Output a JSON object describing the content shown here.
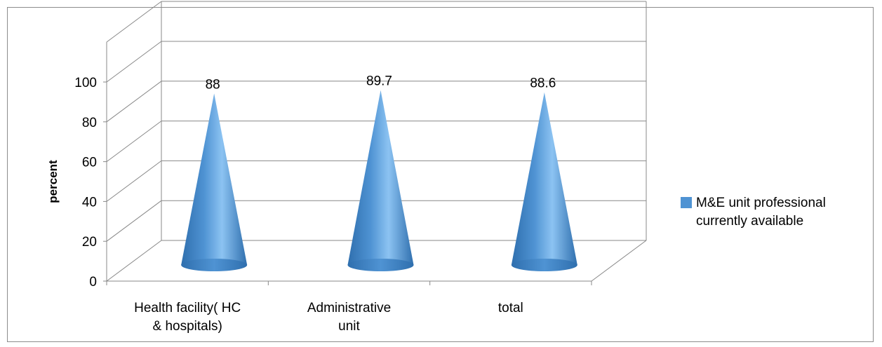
{
  "chart_data": {
    "type": "bar",
    "bar_shape": "cone",
    "three_d": true,
    "categories": [
      [
        "Health facility( HC",
        "& hospitals)"
      ],
      [
        "Administrative",
        "unit"
      ],
      [
        "total"
      ]
    ],
    "series": [
      {
        "name": "M&E unit professional currently available",
        "values": [
          88,
          89.7,
          88.6
        ]
      }
    ],
    "value_labels": [
      "88",
      "89.7",
      "88.6"
    ],
    "ylabel": "percent",
    "ylim": [
      0,
      100
    ],
    "yticks": [
      0,
      20,
      40,
      60,
      80,
      100
    ],
    "grid": true,
    "legend_lines": [
      "M&E unit professional",
      "currently available"
    ],
    "legend_position": "right",
    "colors": {
      "cone": "#4f93d3",
      "cone_light": "#8cc3f2",
      "cone_dark": "#2f6fae",
      "grid": "#888888"
    }
  }
}
